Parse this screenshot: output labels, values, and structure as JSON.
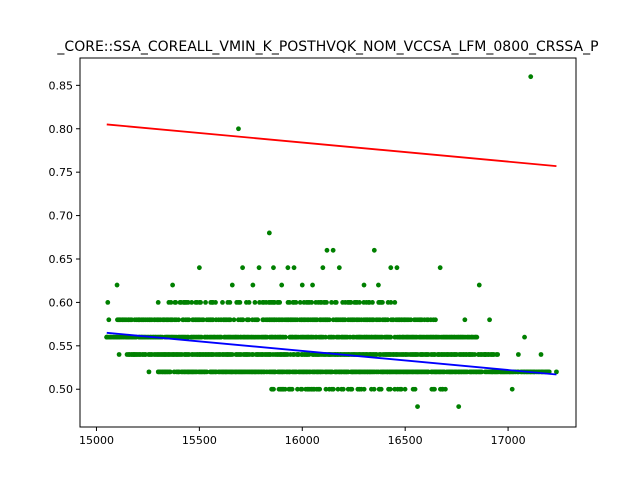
{
  "chart_data": {
    "type": "scatter",
    "title": "_CORE::SSA_COREALL_VMIN_K_POSTHVQK_NOM_VCCSA_LFM_0800_CRSSA_P",
    "xlabel": "",
    "ylabel": "",
    "xlim": [
      14920,
      17330
    ],
    "ylim": [
      0.4565,
      0.8815
    ],
    "grid": false,
    "xticks": [
      15000,
      15500,
      16000,
      16500,
      17000
    ],
    "yticks": [
      0.5,
      0.55,
      0.6,
      0.65,
      0.7,
      0.75,
      0.8,
      0.85
    ],
    "xtick_labels": [
      "15000",
      "15500",
      "16000",
      "16500",
      "17000"
    ],
    "ytick_labels": [
      "0.50",
      "0.55",
      "0.60",
      "0.65",
      "0.70",
      "0.75",
      "0.80",
      "0.85"
    ],
    "points_color": "#008000",
    "bands": [
      {
        "y": 0.52,
        "x_range": [
          15300,
          17200
        ],
        "density": 0.9
      },
      {
        "y": 0.54,
        "x_range": [
          15150,
          16950
        ],
        "density": 0.9
      },
      {
        "y": 0.56,
        "x_range": [
          15050,
          16850
        ],
        "density": 0.85
      },
      {
        "y": 0.58,
        "x_range": [
          15100,
          16650
        ],
        "density": 0.75
      },
      {
        "y": 0.6,
        "x_range": [
          15350,
          16450
        ],
        "density": 0.45
      },
      {
        "y": 0.5,
        "x_range": [
          15850,
          16700
        ],
        "density": 0.45
      }
    ],
    "points": [
      {
        "x": 15050,
        "y": 0.56
      },
      {
        "x": 15055,
        "y": 0.6
      },
      {
        "x": 15060,
        "y": 0.58
      },
      {
        "x": 15100,
        "y": 0.62
      },
      {
        "x": 15110,
        "y": 0.54
      },
      {
        "x": 15140,
        "y": 0.58
      },
      {
        "x": 15180,
        "y": 0.54
      },
      {
        "x": 15210,
        "y": 0.58
      },
      {
        "x": 15220,
        "y": 0.56
      },
      {
        "x": 15255,
        "y": 0.52
      },
      {
        "x": 15300,
        "y": 0.6
      },
      {
        "x": 15370,
        "y": 0.62
      },
      {
        "x": 15500,
        "y": 0.64
      },
      {
        "x": 15660,
        "y": 0.62
      },
      {
        "x": 15690,
        "y": 0.8
      },
      {
        "x": 15710,
        "y": 0.64
      },
      {
        "x": 15760,
        "y": 0.62
      },
      {
        "x": 15790,
        "y": 0.64
      },
      {
        "x": 15840,
        "y": 0.68
      },
      {
        "x": 15860,
        "y": 0.64
      },
      {
        "x": 15900,
        "y": 0.62
      },
      {
        "x": 15930,
        "y": 0.64
      },
      {
        "x": 15960,
        "y": 0.64
      },
      {
        "x": 16000,
        "y": 0.62
      },
      {
        "x": 16050,
        "y": 0.62
      },
      {
        "x": 16100,
        "y": 0.64
      },
      {
        "x": 16120,
        "y": 0.66
      },
      {
        "x": 16150,
        "y": 0.66
      },
      {
        "x": 16180,
        "y": 0.64
      },
      {
        "x": 16300,
        "y": 0.62
      },
      {
        "x": 16350,
        "y": 0.66
      },
      {
        "x": 16370,
        "y": 0.62
      },
      {
        "x": 16430,
        "y": 0.64
      },
      {
        "x": 16460,
        "y": 0.64
      },
      {
        "x": 16560,
        "y": 0.48
      },
      {
        "x": 16670,
        "y": 0.64
      },
      {
        "x": 16760,
        "y": 0.48
      },
      {
        "x": 16790,
        "y": 0.58
      },
      {
        "x": 16860,
        "y": 0.62
      },
      {
        "x": 16890,
        "y": 0.54
      },
      {
        "x": 16910,
        "y": 0.58
      },
      {
        "x": 17020,
        "y": 0.5
      },
      {
        "x": 17050,
        "y": 0.54
      },
      {
        "x": 17080,
        "y": 0.56
      },
      {
        "x": 17110,
        "y": 0.86
      },
      {
        "x": 17160,
        "y": 0.54
      },
      {
        "x": 17200,
        "y": 0.52
      },
      {
        "x": 17235,
        "y": 0.52
      }
    ],
    "fit_lines": [
      {
        "color": "#ff0000",
        "x": [
          15050,
          17235
        ],
        "y": [
          0.805,
          0.757
        ]
      },
      {
        "color": "#0000ff",
        "x": [
          15050,
          17235
        ],
        "y": [
          0.565,
          0.517
        ]
      }
    ]
  }
}
